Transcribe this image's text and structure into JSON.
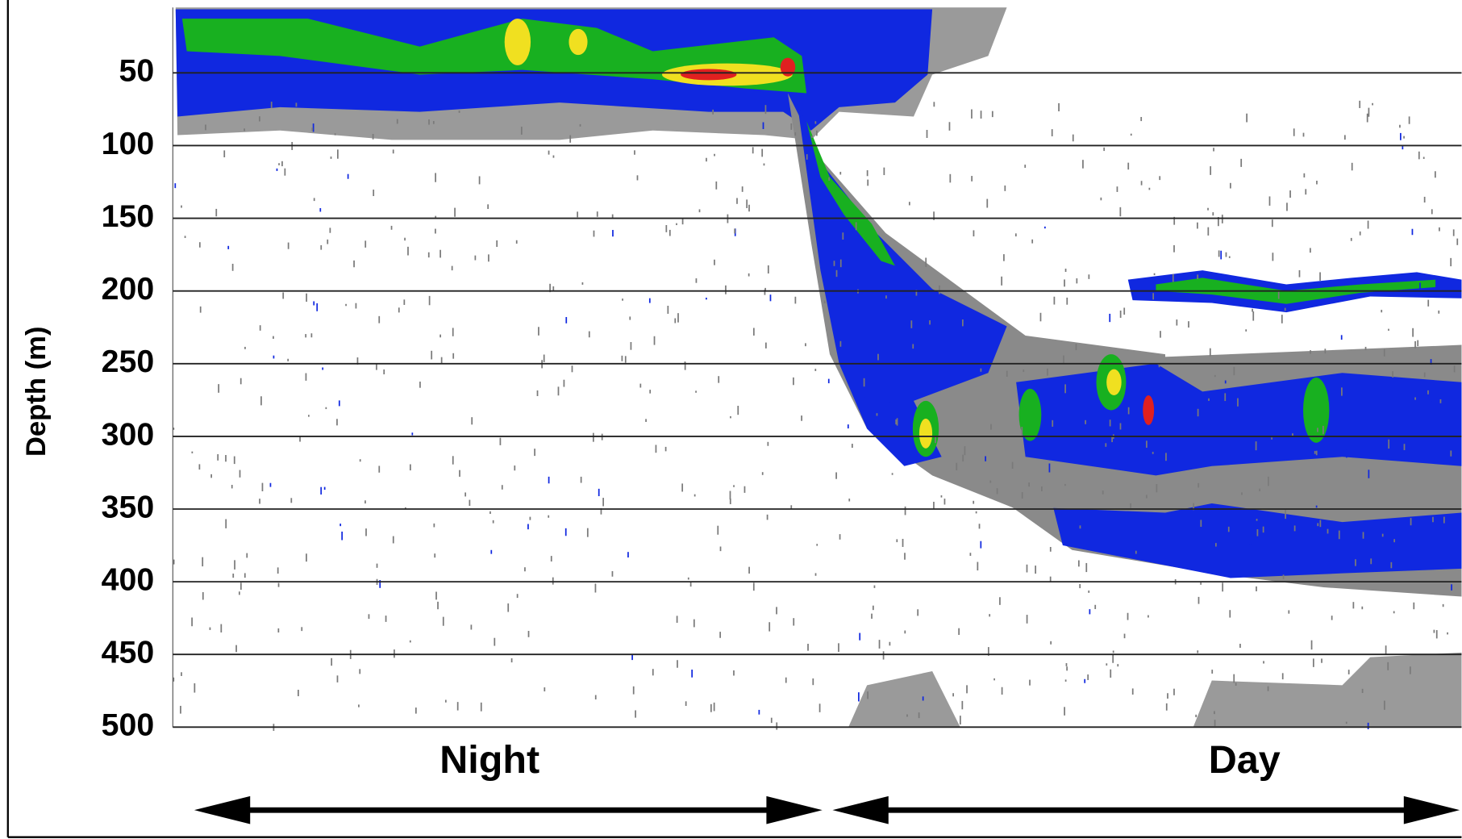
{
  "chart_data": {
    "type": "echogram",
    "y_label": "Depth (m)",
    "ylim": [
      5,
      500
    ],
    "yticks": [
      50,
      100,
      150,
      200,
      250,
      300,
      350,
      400,
      450,
      500
    ],
    "y_inverted": true,
    "grid": true,
    "period_labels": [
      "Night",
      "Day"
    ]
  }
}
